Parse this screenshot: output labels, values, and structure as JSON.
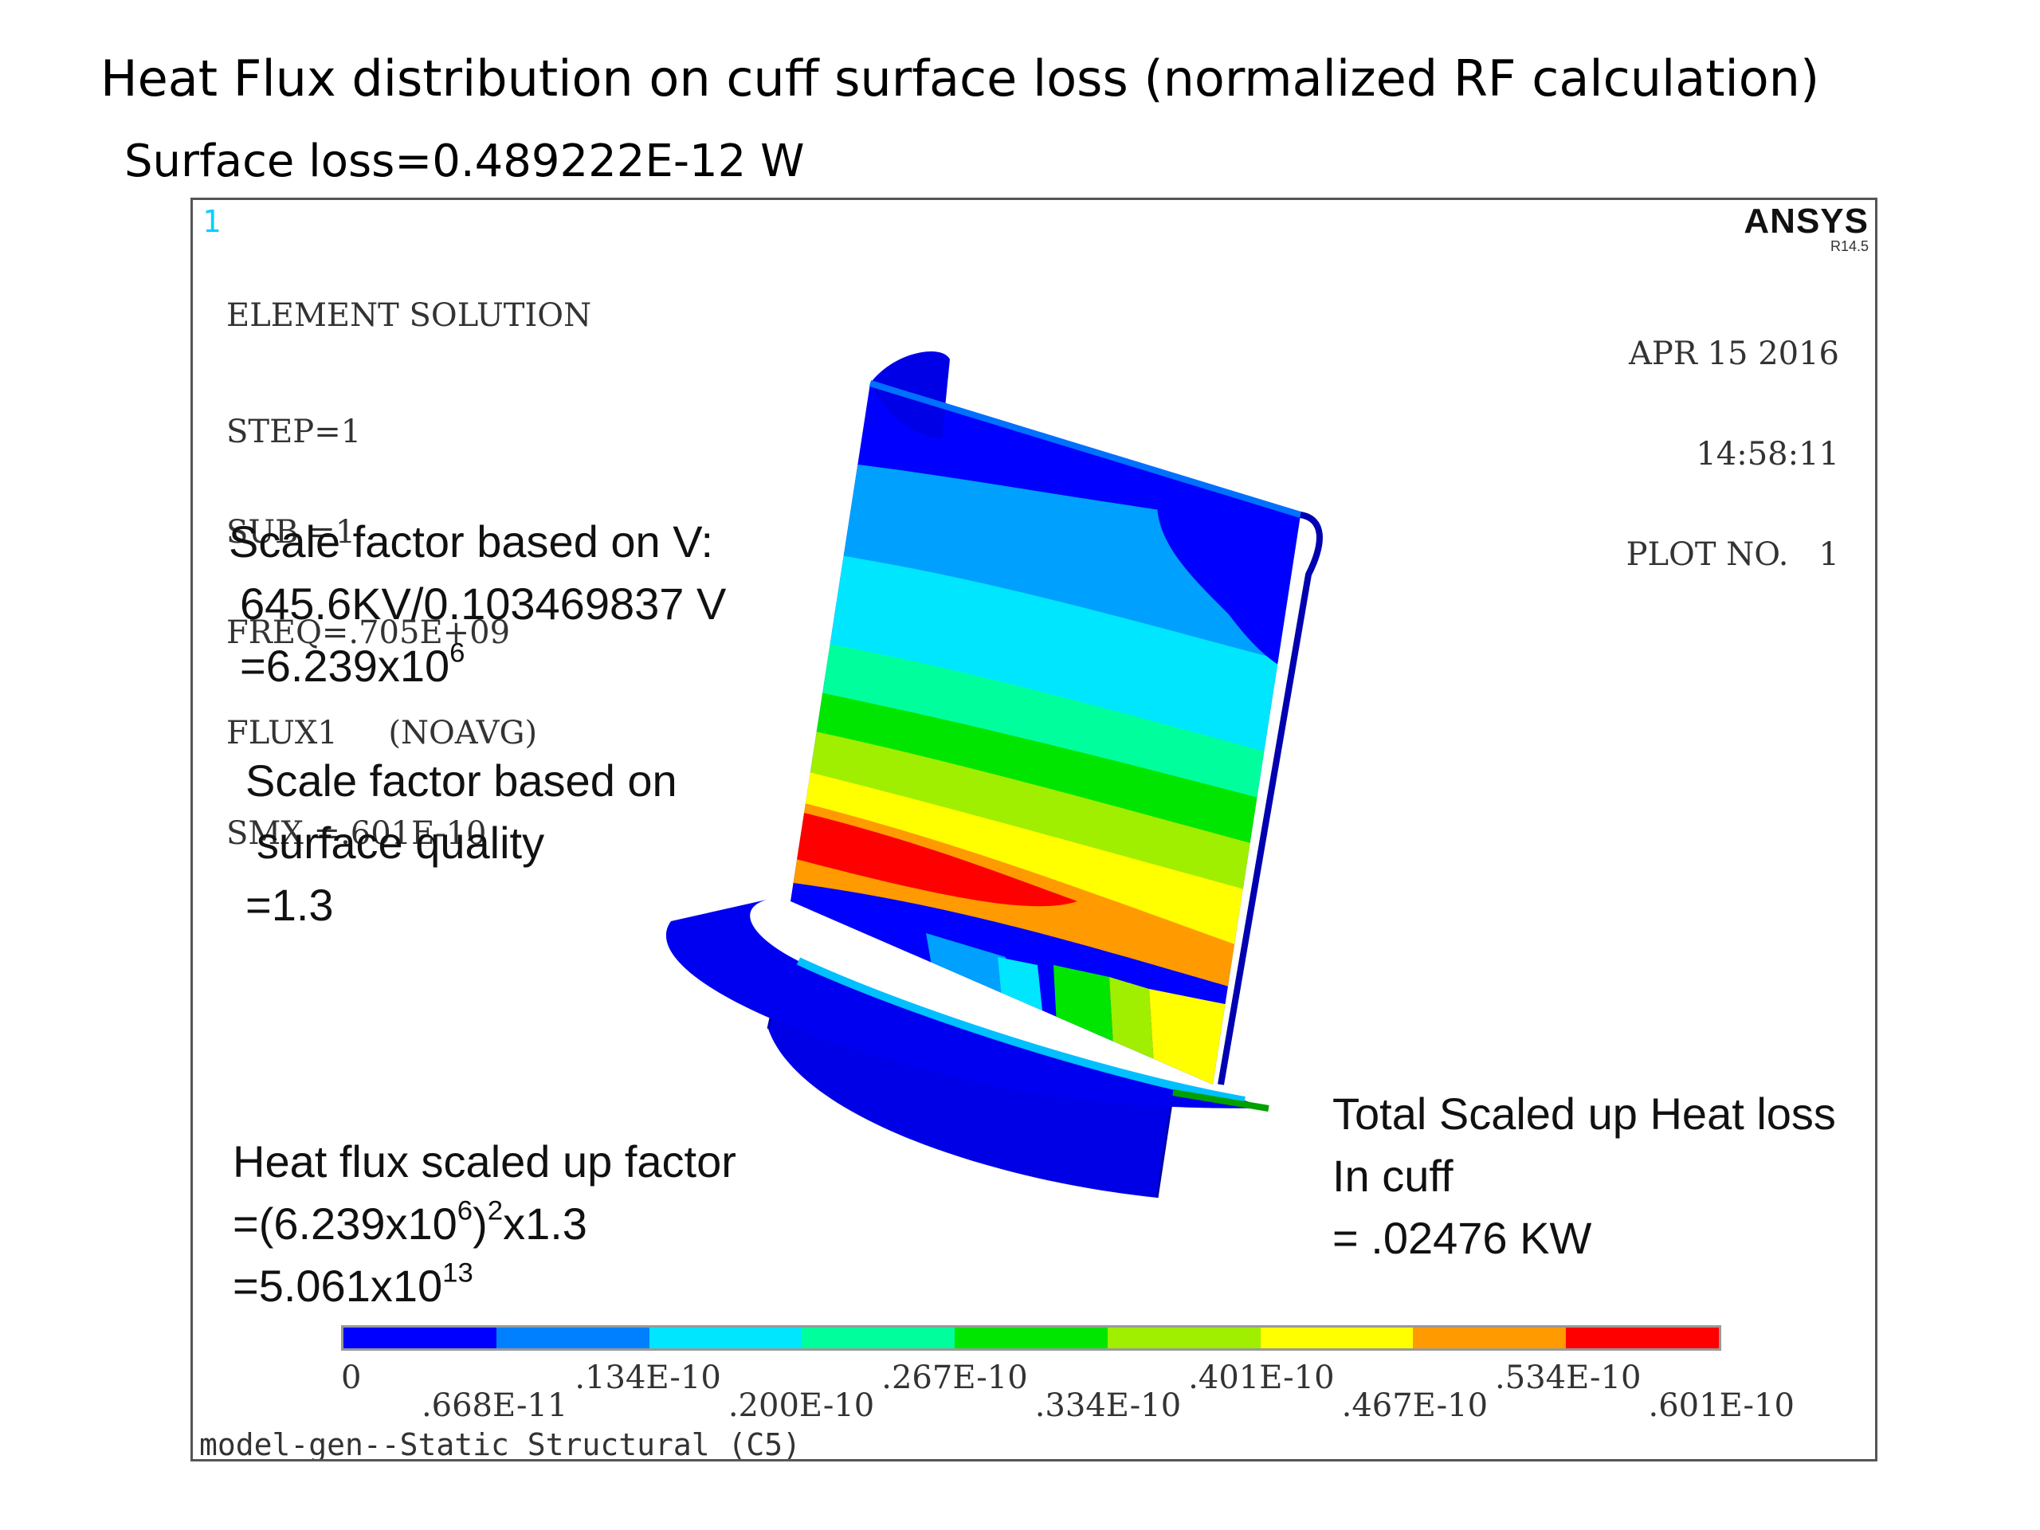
{
  "slide": {
    "title": "Heat Flux distribution on cuff surface loss (normalized RF calculation)",
    "subtitle": "Surface loss=0.489222E-12 W"
  },
  "window": {
    "number": "1",
    "logo": "ANSYS",
    "release": "R14.5",
    "solution_title": "ELEMENT SOLUTION",
    "info_lines": [
      "STEP=1",
      "SUB =1",
      "FREQ=.705E+09",
      "FLUX1     (NOAVG)",
      "SMX =.601E-10"
    ],
    "date": "APR 15 2016",
    "time": "14:58:11",
    "plot_no": "PLOT NO.   1",
    "footer": "model-gen--Static Structural (C5)"
  },
  "notes": {
    "scale_v": {
      "line1": "Scale factor based on V:",
      "line2": "645.6KV/0.103469837 V",
      "line3_base": "=6.239x10",
      "line3_exp": "6"
    },
    "scale_surface": {
      "line1": "Scale factor based on",
      "line2": "surface quality",
      "line3": "=1.3"
    },
    "heat_flux": {
      "line1": "Heat flux scaled up factor",
      "line2_a": "=(6.239x10",
      "line2_exp": "6",
      "line2_b": ")",
      "line2_exp2": "2",
      "line2_c": "x1.3",
      "line3_base": "=5.061x10",
      "line3_exp": "13"
    },
    "total": {
      "line1": "Total Scaled up Heat loss",
      "line2": "In cuff",
      "line3": "= .02476 KW"
    }
  },
  "legend": {
    "colors": [
      "#0000ff",
      "#0080ff",
      "#00e6ff",
      "#00ff9c",
      "#00e600",
      "#a0ee00",
      "#ffff00",
      "#ff9a00",
      "#ff0000"
    ],
    "labels_top": [
      "0",
      ".134E-10",
      ".267E-10",
      ".401E-10",
      ".534E-10"
    ],
    "labels_bottom": [
      ".668E-11",
      ".200E-10",
      ".334E-10",
      ".467E-10",
      ".601E-10"
    ]
  }
}
